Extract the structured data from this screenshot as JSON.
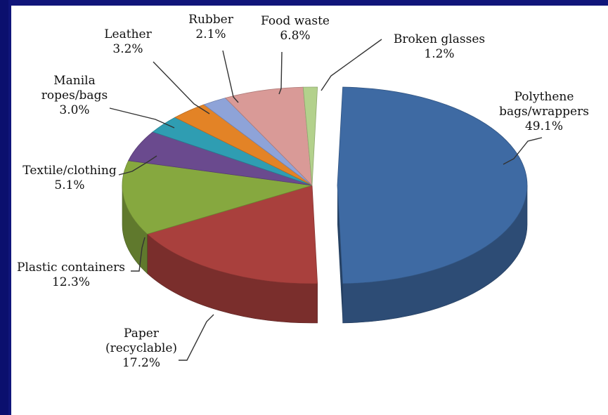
{
  "chart_data": {
    "type": "pie",
    "title": "",
    "slices": [
      {
        "label_lines": [
          "Polythene",
          "bags/wrappers",
          "49.1%"
        ],
        "value": 49.1,
        "color": "#3e6aa3",
        "exploded": true
      },
      {
        "label_lines": [
          "Paper",
          "(recyclable)",
          "17.2%"
        ],
        "value": 17.2,
        "color": "#a9403d"
      },
      {
        "label_lines": [
          "Plastic containers",
          "12.3%"
        ],
        "value": 12.3,
        "color": "#86a83f"
      },
      {
        "label_lines": [
          "Textile/clothing",
          "5.1%"
        ],
        "value": 5.1,
        "color": "#6a4a8e"
      },
      {
        "label_lines": [
          "Manila",
          "ropes/bags",
          "3.0%"
        ],
        "value": 3.0,
        "color": "#2f9db2"
      },
      {
        "label_lines": [
          "Leather",
          "3.2%"
        ],
        "value": 3.2,
        "color": "#e38326"
      },
      {
        "label_lines": [
          "Rubber",
          "2.1%"
        ],
        "value": 2.1,
        "color": "#8ea3d8"
      },
      {
        "label_lines": [
          "Food waste",
          "6.8%"
        ],
        "value": 6.8,
        "color": "#d99a97"
      },
      {
        "label_lines": [
          "Broken glasses",
          "1.2%"
        ],
        "value": 1.2,
        "color": "#b3d18c"
      }
    ]
  }
}
